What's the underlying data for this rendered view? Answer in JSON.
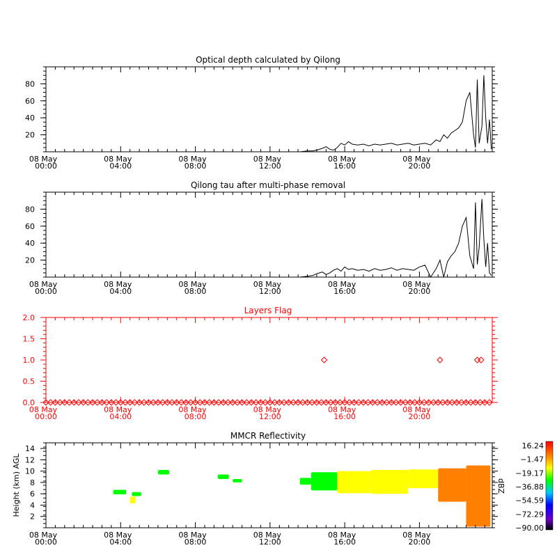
{
  "chart_data": [
    {
      "type": "line",
      "title": "Optical depth calculated by Qilong",
      "xlabel": "",
      "ylabel": "",
      "x_ticks": [
        {
          "date": "08 May",
          "time": "00:00"
        },
        {
          "date": "08 May",
          "time": "04:00"
        },
        {
          "date": "08 May",
          "time": "08:00"
        },
        {
          "date": "08 May",
          "time": "12:00"
        },
        {
          "date": "08 May",
          "time": "16:00"
        },
        {
          "date": "08 May",
          "time": "20:00"
        }
      ],
      "xlim_hours": [
        0,
        23.9
      ],
      "ylim": [
        0,
        100
      ],
      "y_ticks": [
        20,
        40,
        60,
        80
      ],
      "color": "#000000",
      "series": [
        {
          "x_hours": [
            13.6,
            14.0,
            14.3,
            14.5,
            14.8,
            15.0,
            15.2,
            15.4,
            15.6,
            15.8,
            16.0,
            16.2,
            16.4,
            16.7,
            17.0,
            17.3,
            17.6,
            17.9,
            18.2,
            18.5,
            18.8,
            19.1,
            19.4,
            19.7,
            20.0,
            20.3,
            20.6,
            20.9,
            21.1,
            21.3,
            21.5,
            21.7,
            21.9,
            22.1,
            22.3,
            22.5,
            22.7,
            22.9,
            23.0,
            23.1,
            23.2,
            23.35,
            23.45,
            23.55,
            23.65,
            23.75,
            23.85
          ],
          "values": [
            0,
            1,
            1,
            2,
            4,
            6,
            3,
            2,
            5,
            10,
            8,
            12,
            9,
            8,
            9,
            7,
            9,
            8,
            9,
            10,
            8,
            9,
            10,
            8,
            9,
            10,
            8,
            14,
            12,
            20,
            16,
            22,
            25,
            28,
            35,
            60,
            70,
            20,
            5,
            85,
            10,
            30,
            90,
            40,
            10,
            38,
            3
          ]
        }
      ]
    },
    {
      "type": "line",
      "title": "Qilong tau after multi-phase removal",
      "xlabel": "",
      "ylabel": "",
      "x_ticks": [
        {
          "date": "08 May",
          "time": "00:00"
        },
        {
          "date": "08 May",
          "time": "04:00"
        },
        {
          "date": "08 May",
          "time": "08:00"
        },
        {
          "date": "08 May",
          "time": "12:00"
        },
        {
          "date": "08 May",
          "time": "16:00"
        },
        {
          "date": "08 May",
          "time": "20:00"
        }
      ],
      "xlim_hours": [
        0,
        23.9
      ],
      "ylim": [
        0,
        100
      ],
      "y_ticks": [
        20,
        40,
        60,
        80
      ],
      "color": "#000000",
      "series": [
        {
          "x_hours": [
            13.6,
            14.0,
            14.3,
            14.5,
            14.8,
            15.0,
            15.2,
            15.4,
            15.6,
            15.8,
            16.0,
            16.2,
            16.4,
            16.7,
            17.0,
            17.3,
            17.6,
            17.9,
            18.2,
            18.5,
            18.8,
            19.1,
            19.4,
            19.7,
            20.0,
            20.3,
            20.6,
            20.9,
            21.1,
            21.3,
            21.5,
            21.7,
            21.9,
            22.1,
            22.3,
            22.5,
            22.7,
            22.9,
            23.0,
            23.1,
            23.2,
            23.35,
            23.45,
            23.55,
            23.65,
            23.75,
            23.85
          ],
          "values": [
            0,
            1,
            2,
            4,
            6,
            3,
            5,
            8,
            10,
            7,
            12,
            9,
            10,
            8,
            9,
            7,
            10,
            8,
            9,
            11,
            8,
            10,
            9,
            8,
            12,
            14,
            0,
            10,
            20,
            0,
            18,
            25,
            30,
            40,
            60,
            70,
            25,
            10,
            88,
            15,
            35,
            92,
            45,
            12,
            40,
            5,
            2
          ]
        }
      ]
    },
    {
      "type": "scatter",
      "title": "Layers Flag",
      "xlabel": "",
      "ylabel": "",
      "x_ticks": [
        {
          "date": "08 May",
          "time": "00:00"
        },
        {
          "date": "08 May",
          "time": "04:00"
        },
        {
          "date": "08 May",
          "time": "08:00"
        },
        {
          "date": "08 May",
          "time": "12:00"
        },
        {
          "date": "08 May",
          "time": "16:00"
        },
        {
          "date": "08 May",
          "time": "20:00"
        }
      ],
      "xlim_hours": [
        0,
        23.9
      ],
      "ylim": [
        0,
        2
      ],
      "y_ticks": [
        "0.0",
        "0.5",
        "1.0",
        "1.5",
        "2.0"
      ],
      "color": "#ff0000",
      "marker": "diamond",
      "baseline_value": 0,
      "baseline_spacing_hours": 0.25,
      "flag_points": [
        {
          "x_hours": 14.9,
          "y": 1
        },
        {
          "x_hours": 21.1,
          "y": 1
        },
        {
          "x_hours": 23.1,
          "y": 1
        },
        {
          "x_hours": 23.3,
          "y": 1
        }
      ]
    },
    {
      "type": "heatmap",
      "title": "MMCR Reflectivity",
      "xlabel": "",
      "ylabel": "Height (km) AGL",
      "x_ticks": [
        {
          "date": "08 May",
          "time": "00:00"
        },
        {
          "date": "08 May",
          "time": "04:00"
        },
        {
          "date": "08 May",
          "time": "08:00"
        },
        {
          "date": "08 May",
          "time": "12:00"
        },
        {
          "date": "08 May",
          "time": "16:00"
        },
        {
          "date": "08 May",
          "time": "20:00"
        }
      ],
      "xlim_hours": [
        0,
        23.9
      ],
      "ylim_km": [
        0,
        15
      ],
      "y_ticks": [
        2,
        4,
        6,
        8,
        10,
        12,
        14
      ],
      "colorbar": {
        "unit": "dBZ",
        "ticks": [
          "16.24",
          "−1.47",
          "−19.17",
          "−36.88",
          "−54.59",
          "−72.29",
          "−90.00"
        ],
        "range": [
          -90,
          16.24
        ],
        "colors": [
          "#000000",
          "#6a00c8",
          "#0000ff",
          "#00c8ff",
          "#00ff00",
          "#ffff00",
          "#ff8000",
          "#ff0000"
        ]
      },
      "echoes": [
        {
          "x_hours": [
            3.6,
            4.3
          ],
          "height_km": [
            5.9,
            6.7
          ],
          "dbz": -30
        },
        {
          "x_hours": [
            4.6,
            5.1
          ],
          "height_km": [
            5.6,
            6.3
          ],
          "dbz": -32
        },
        {
          "x_hours": [
            4.5,
            4.8
          ],
          "height_km": [
            4.3,
            5.5
          ],
          "dbz": -15
        },
        {
          "x_hours": [
            6.0,
            6.6
          ],
          "height_km": [
            9.4,
            10.2
          ],
          "dbz": -30
        },
        {
          "x_hours": [
            9.2,
            9.8
          ],
          "height_km": [
            8.6,
            9.4
          ],
          "dbz": -30
        },
        {
          "x_hours": [
            10.0,
            10.5
          ],
          "height_km": [
            8.0,
            8.6
          ],
          "dbz": -32
        },
        {
          "x_hours": [
            13.6,
            14.2
          ],
          "height_km": [
            7.6,
            8.8
          ],
          "dbz": -30
        },
        {
          "x_hours": [
            14.2,
            15.6
          ],
          "height_km": [
            6.6,
            9.8
          ],
          "dbz": -25
        },
        {
          "x_hours": [
            15.6,
            17.4
          ],
          "height_km": [
            6.1,
            10.0
          ],
          "dbz": -20
        },
        {
          "x_hours": [
            17.4,
            19.4
          ],
          "height_km": [
            6.0,
            10.2
          ],
          "dbz": -18
        },
        {
          "x_hours": [
            19.4,
            21.0
          ],
          "height_km": [
            7.0,
            10.3
          ],
          "dbz": -17
        },
        {
          "x_hours": [
            21.0,
            22.5
          ],
          "height_km": [
            4.6,
            10.5
          ],
          "dbz": -5
        },
        {
          "x_hours": [
            22.5,
            23.8
          ],
          "height_km": [
            0.2,
            11.0
          ],
          "dbz": 5
        }
      ]
    }
  ]
}
